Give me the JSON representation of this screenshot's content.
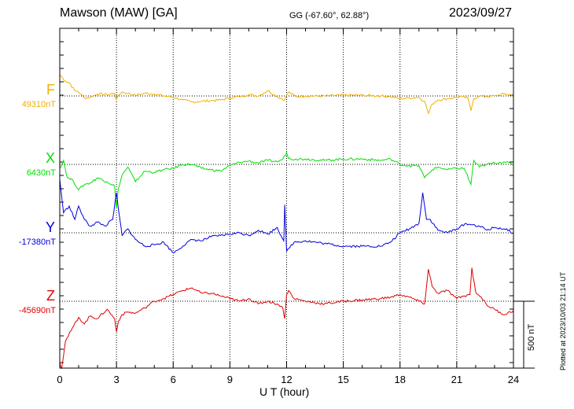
{
  "header": {
    "station": "Mawson (MAW)  [GA]",
    "coords": "GG (-67.60°,  62.88°)",
    "date": "2023/09/27"
  },
  "footer": {
    "plotted": "Plotted at 2023/10/03 21:14 UT",
    "scale_bar_label": "500 nT"
  },
  "chart_data": {
    "type": "line",
    "title": "Mawson (MAW)  [GA]",
    "xlabel": "U T (hour)",
    "ylabel": "",
    "xlim": [
      0,
      24
    ],
    "xticks": [
      0,
      3,
      6,
      9,
      12,
      15,
      18,
      21,
      24
    ],
    "grid": true,
    "scale_bar_nT": 500,
    "series": [
      {
        "name": "F",
        "color": "#f0b000",
        "baseline_label": "49310nT",
        "baseline_nT": 49310,
        "x": [
          0,
          0.3,
          0.5,
          0.8,
          1.0,
          1.3,
          1.6,
          2.0,
          2.5,
          2.9,
          3.0,
          3.1,
          3.3,
          3.6,
          4.0,
          4.5,
          5.0,
          5.5,
          6.0,
          6.5,
          7.0,
          7.5,
          8.0,
          8.5,
          9.0,
          9.5,
          10.0,
          10.5,
          11.0,
          11.5,
          11.9,
          12.0,
          12.1,
          12.5,
          13.0,
          14.0,
          15.0,
          16.0,
          17.0,
          17.5,
          18.0,
          18.5,
          19.0,
          19.3,
          19.5,
          19.7,
          20.0,
          20.5,
          21.0,
          21.3,
          21.6,
          21.75,
          21.9,
          22.2,
          22.6,
          23.0,
          23.5,
          24.0
        ],
        "values": [
          160,
          110,
          100,
          40,
          30,
          -15,
          -10,
          15,
          10,
          20,
          -30,
          5,
          30,
          20,
          5,
          20,
          15,
          0,
          -10,
          -30,
          -45,
          -40,
          -35,
          -30,
          -15,
          -5,
          10,
          0,
          40,
          -5,
          -30,
          5,
          30,
          -5,
          0,
          0,
          5,
          5,
          0,
          -5,
          -20,
          -15,
          -10,
          -40,
          -130,
          -60,
          -30,
          -20,
          -10,
          -5,
          -20,
          -110,
          -20,
          0,
          -5,
          0,
          15,
          5
        ]
      },
      {
        "name": "X",
        "color": "#00e000",
        "baseline_label": "6430nT",
        "baseline_nT": 6430,
        "x": [
          0,
          0.2,
          0.4,
          0.7,
          1.0,
          1.3,
          1.6,
          2.0,
          2.5,
          2.9,
          3.0,
          3.1,
          3.3,
          3.6,
          4.0,
          4.5,
          5.0,
          5.5,
          6.0,
          6.5,
          7.0,
          7.5,
          8.0,
          8.5,
          9.0,
          9.5,
          10.0,
          10.5,
          11.0,
          11.5,
          11.8,
          12.0,
          12.1,
          12.5,
          13.0,
          14.0,
          15.0,
          16.0,
          17.0,
          17.5,
          18.0,
          18.5,
          19.0,
          19.3,
          19.5,
          19.7,
          20.0,
          20.5,
          21.0,
          21.4,
          21.75,
          21.9,
          22.2,
          22.6,
          23.0,
          23.5,
          24.0
        ],
        "values": [
          -30,
          30,
          -100,
          -120,
          -190,
          -150,
          -140,
          -100,
          -130,
          -160,
          -330,
          -180,
          -80,
          -20,
          -130,
          -50,
          -60,
          -40,
          -30,
          0,
          0,
          -30,
          -40,
          -50,
          -10,
          15,
          25,
          10,
          30,
          20,
          40,
          90,
          45,
          40,
          40,
          30,
          40,
          40,
          30,
          40,
          0,
          -10,
          -10,
          -100,
          -70,
          -40,
          -20,
          -40,
          -30,
          -30,
          -150,
          30,
          -20,
          0,
          10,
          20,
          0
        ]
      },
      {
        "name": "Y",
        "color": "#0000e0",
        "baseline_label": "-17380nT",
        "baseline_nT": -17380,
        "x": [
          0,
          0.2,
          0.5,
          0.8,
          1.0,
          1.3,
          1.6,
          2.0,
          2.4,
          2.8,
          3.0,
          3.1,
          3.3,
          3.6,
          4.0,
          4.5,
          5.0,
          5.5,
          6.0,
          6.5,
          7.0,
          7.5,
          8.0,
          8.5,
          9.0,
          9.5,
          10.0,
          10.5,
          11.0,
          11.5,
          11.85,
          11.9,
          12.0,
          12.1,
          12.4,
          13.0,
          14.0,
          15.0,
          16.0,
          17.0,
          17.5,
          18.0,
          18.5,
          19.0,
          19.2,
          19.4,
          19.6,
          20.0,
          20.5,
          21.0,
          21.5,
          21.8,
          22.2,
          22.6,
          23.0,
          23.5,
          24.0
        ],
        "values": [
          400,
          150,
          200,
          100,
          200,
          100,
          50,
          80,
          50,
          100,
          300,
          180,
          -20,
          30,
          -50,
          -100,
          -90,
          -70,
          -150,
          -100,
          -50,
          -60,
          -30,
          -20,
          -10,
          0,
          -20,
          20,
          -10,
          40,
          -60,
          210,
          -140,
          -120,
          -70,
          -60,
          -80,
          -100,
          -100,
          -100,
          -70,
          0,
          30,
          70,
          300,
          100,
          100,
          20,
          0,
          30,
          70,
          60,
          50,
          20,
          40,
          30,
          0
        ]
      },
      {
        "name": "Z",
        "color": "#e00000",
        "baseline_label": "-45690nT",
        "baseline_nT": -45690,
        "x": [
          0,
          0.1,
          0.3,
          0.6,
          1.0,
          1.3,
          1.6,
          2.0,
          2.5,
          2.9,
          3.0,
          3.1,
          3.3,
          3.6,
          4.0,
          4.5,
          5.0,
          5.5,
          6.0,
          6.5,
          7.0,
          7.5,
          8.0,
          8.5,
          9.0,
          9.5,
          10.0,
          10.5,
          11.0,
          11.5,
          11.8,
          11.9,
          12.0,
          12.1,
          12.4,
          13.0,
          14.0,
          15.0,
          16.0,
          17.0,
          17.5,
          18.0,
          18.5,
          19.0,
          19.3,
          19.5,
          19.7,
          20.0,
          20.5,
          21.0,
          21.4,
          21.7,
          21.8,
          22.0,
          22.3,
          22.6,
          23.0,
          23.5,
          24.0
        ],
        "values": [
          -460,
          -500,
          -300,
          -220,
          -120,
          -170,
          -110,
          -130,
          -60,
          -130,
          -230,
          -150,
          -100,
          -80,
          -90,
          -50,
          0,
          20,
          50,
          80,
          100,
          60,
          60,
          40,
          20,
          0,
          20,
          -20,
          0,
          -20,
          -50,
          -130,
          50,
          80,
          20,
          0,
          -20,
          0,
          10,
          20,
          30,
          50,
          30,
          0,
          -20,
          240,
          110,
          60,
          80,
          20,
          40,
          50,
          250,
          70,
          30,
          -30,
          -60,
          -100,
          -70
        ]
      }
    ]
  }
}
